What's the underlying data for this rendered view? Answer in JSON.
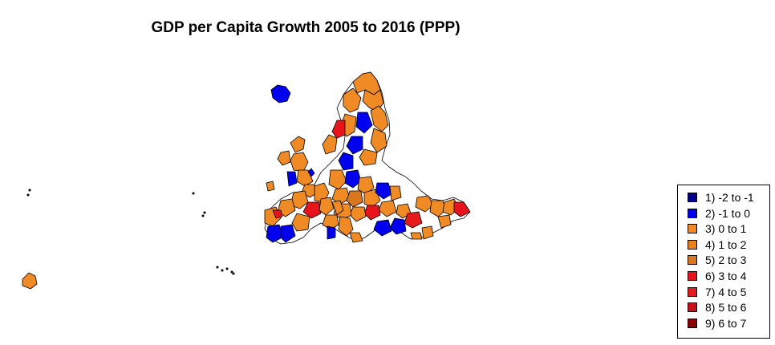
{
  "title": "GDP per Capita Growth 2005 to 2016 (PPP)",
  "colors": {
    "c1": "#00008B",
    "c2": "#0000EE",
    "c3": "#F08A24",
    "c4": "#E8801E",
    "c5": "#D9771E",
    "c6": "#E8141C",
    "c7": "#E41A1C",
    "c8": "#C4141A",
    "c9": "#8B0000",
    "none": "#FFFFFF"
  },
  "legend": {
    "items": [
      {
        "label": "1) -2 to -1",
        "color": "#00008B"
      },
      {
        "label": "2) -1 to 0",
        "color": "#0000EE"
      },
      {
        "label": "3) 0 to 1",
        "color": "#F08A24"
      },
      {
        "label": "4) 1 to 2",
        "color": "#E8801E"
      },
      {
        "label": "5) 2 to 3",
        "color": "#D9771E"
      },
      {
        "label": "6) 3 to 4",
        "color": "#E8141C"
      },
      {
        "label": "7) 4 to 5",
        "color": "#E41A1C"
      },
      {
        "label": "8) 5 to 6",
        "color": "#C4141A"
      },
      {
        "label": "9) 6 to 7",
        "color": "#8B0000"
      }
    ]
  }
}
